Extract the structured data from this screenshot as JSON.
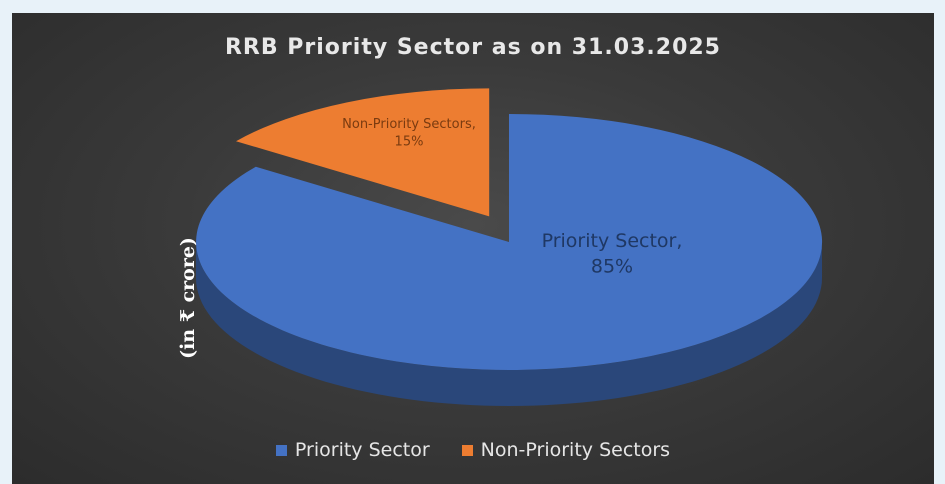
{
  "chart_data": {
    "type": "pie",
    "title": "RRB Priority Sector as on 31.03.2025",
    "side_label": "(in ₹ crore)",
    "slices": [
      {
        "name": "Priority Sector",
        "value": 85,
        "label_line1": "Priority Sector,",
        "label_line2": "85%",
        "color": "#4472c4"
      },
      {
        "name": "Non-Priority Sectors",
        "value": 15,
        "label_line1": "Non-Priority Sectors,",
        "label_line2": "15%",
        "color": "#ed7d31"
      }
    ],
    "legend": {
      "placement": "bottom",
      "entries": [
        "Priority Sector",
        "Non-Priority Sectors"
      ]
    },
    "style": {
      "three_d": true,
      "exploded_slice": "Non-Priority Sectors"
    }
  }
}
